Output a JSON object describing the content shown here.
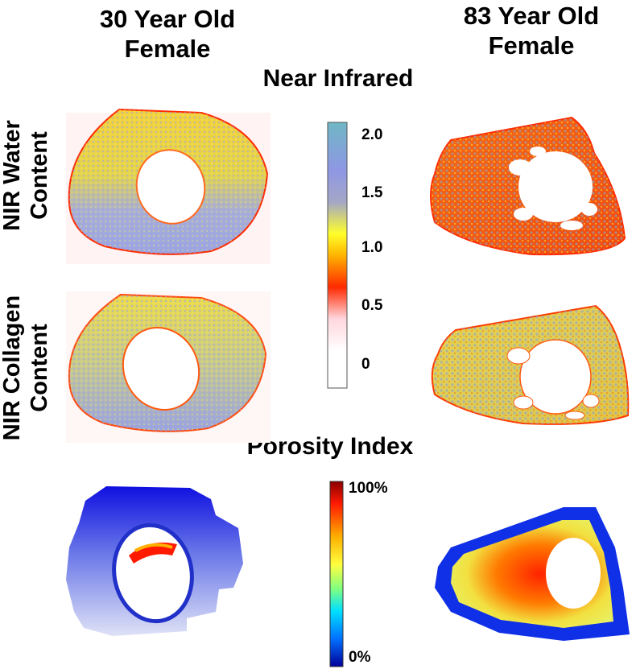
{
  "columns": {
    "left": {
      "line1": "30 Year Old",
      "line2": "Female"
    },
    "right": {
      "line1": "83 Year Old",
      "line2": "Female"
    }
  },
  "sections": {
    "nir_title": "Near Infrared",
    "porosity_title": "Porosity Index"
  },
  "rows": {
    "water": {
      "line1": "NIR Water",
      "line2": "Content"
    },
    "collagen": {
      "line1": "NIR Collagen",
      "line2": "Content"
    }
  },
  "nir_colorbar": {
    "ticks": [
      "2.0",
      "1.5",
      "1.0",
      "0.5",
      "0"
    ],
    "colors": [
      "#6fb7c4",
      "#8f97e4",
      "#a4a7c6",
      "#ffff2a",
      "#ffb400",
      "#ff2a00",
      "#ffd6de",
      "#ffffff"
    ]
  },
  "porosity_colorbar": {
    "ticks": [
      "100%",
      "0%"
    ],
    "colors": [
      "#8a0000",
      "#ff1a00",
      "#ffb000",
      "#ffff40",
      "#80ff80",
      "#00e0ff",
      "#0070ff",
      "#00009a"
    ]
  }
}
